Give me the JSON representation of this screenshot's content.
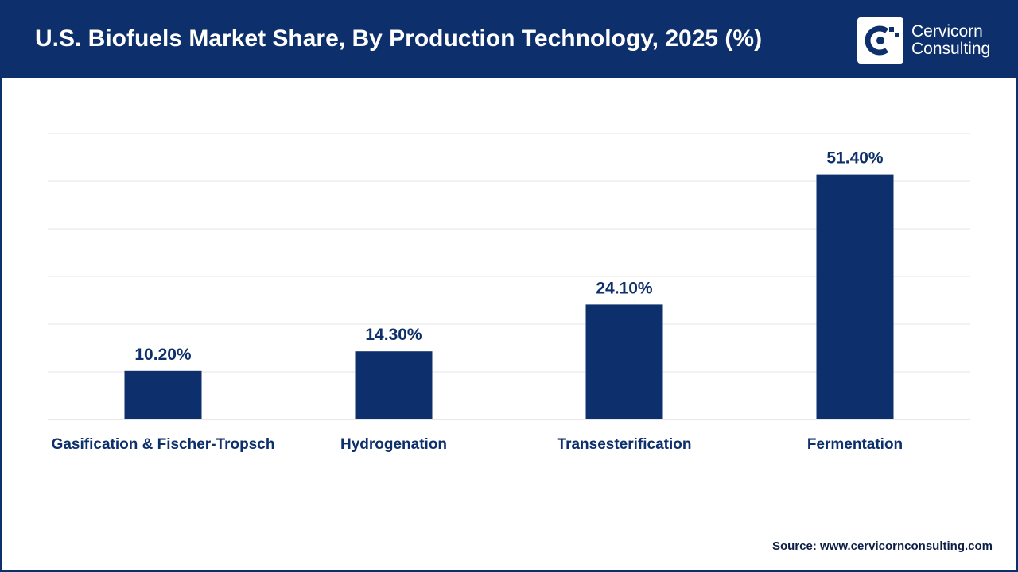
{
  "header": {
    "title": "U.S. Biofuels Market Share, By Production Technology, 2025 (%)",
    "logo_line1": "Cervicorn",
    "logo_line2": "Consulting"
  },
  "source": "Source: www.cervicornconsulting.com",
  "colors": {
    "header": "#0d2f6b",
    "bar": "#0d2f6b",
    "label": "#0d2f6b",
    "grid": "#e6e6e6"
  },
  "chart_data": {
    "type": "bar",
    "categories": [
      "Gasification & Fischer-Tropsch",
      "Hydrogenation",
      "Transesterification",
      "Fermentation"
    ],
    "values": [
      10.2,
      14.3,
      24.1,
      51.4
    ],
    "data_labels": [
      "10.20%",
      "14.30%",
      "24.10%",
      "51.40%"
    ],
    "ylim": [
      0,
      60
    ],
    "grid": true,
    "xlabel": "",
    "ylabel": ""
  }
}
